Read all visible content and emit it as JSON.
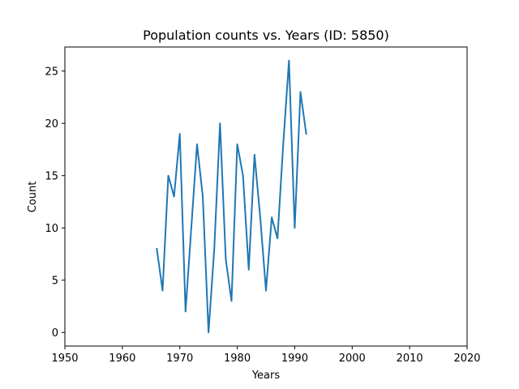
{
  "chart_data": {
    "type": "line",
    "title": "Population counts vs. Years (ID: 5850)",
    "xlabel": "Years",
    "ylabel": "Count",
    "xlim": [
      1950,
      2020
    ],
    "ylim": [
      -1.3,
      27.3
    ],
    "xticks": [
      1950,
      1960,
      1970,
      1980,
      1990,
      2000,
      2010,
      2020
    ],
    "yticks": [
      0,
      5,
      10,
      15,
      20,
      25
    ],
    "grid": false,
    "series": [
      {
        "color": "#1f77b4",
        "x": [
          1966,
          1967,
          1968,
          1969,
          1970,
          1971,
          1972,
          1973,
          1974,
          1975,
          1976,
          1977,
          1978,
          1979,
          1980,
          1981,
          1982,
          1983,
          1984,
          1985,
          1986,
          1987,
          1988,
          1989,
          1990,
          1991,
          1992
        ],
        "values": [
          8,
          4,
          15,
          13,
          19,
          2,
          10,
          18,
          13,
          0,
          8,
          20,
          7,
          3,
          18,
          15,
          6,
          17,
          11,
          4,
          11,
          9,
          18,
          26,
          10,
          23,
          19
        ]
      }
    ]
  }
}
